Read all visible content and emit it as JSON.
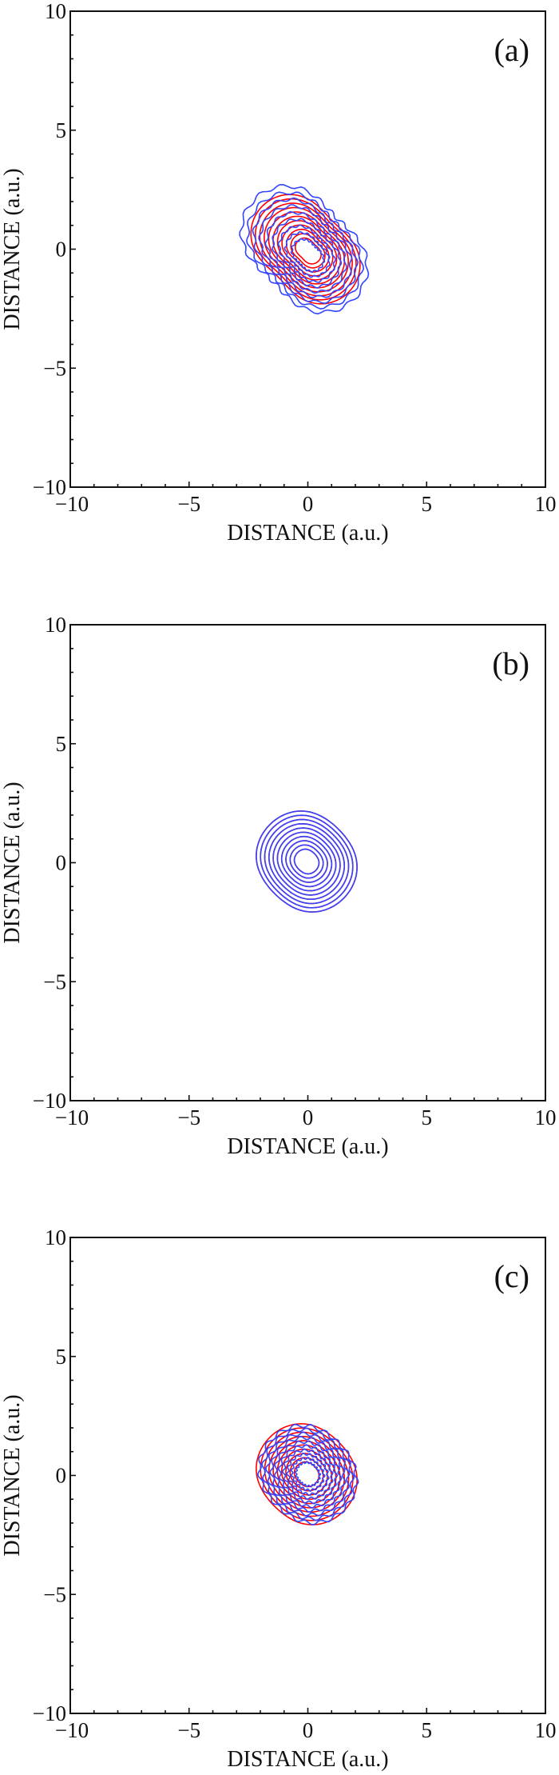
{
  "chart_data": [
    {
      "type": "contour",
      "panel_label": "(a)",
      "xlabel": "DISTANCE (a.u.)",
      "ylabel": "DISTANCE (a.u.)",
      "xlim": [
        -10,
        10
      ],
      "ylim": [
        -10,
        10
      ],
      "xticks": [
        -10,
        -5,
        0,
        5,
        10
      ],
      "yticks": [
        -10,
        -5,
        0,
        5,
        10
      ],
      "tick_labels": [
        "−10",
        "−5",
        "0",
        "5",
        "10"
      ],
      "grid": false,
      "series": [
        {
          "color": "#ff0000",
          "n_contours": 11,
          "outer_extent": {
            "x": [
              -2.2,
              2.0
            ],
            "y": [
              -2.1,
              2.1
            ]
          },
          "orientation_deg": 135,
          "wobbly": false
        },
        {
          "color": "#3344ff",
          "n_contours": 9,
          "outer_extent": {
            "x": [
              -2.6,
              2.3
            ],
            "y": [
              -2.4,
              2.4
            ]
          },
          "orientation_deg": 135,
          "wobbly": true
        }
      ]
    },
    {
      "type": "contour",
      "panel_label": "(b)",
      "xlabel": "DISTANCE (a.u.)",
      "ylabel": "DISTANCE (a.u.)",
      "xlim": [
        -10,
        10
      ],
      "ylim": [
        -10,
        10
      ],
      "xticks": [
        -10,
        -5,
        0,
        5,
        10
      ],
      "yticks": [
        -10,
        -5,
        0,
        5,
        10
      ],
      "tick_labels": [
        "−10",
        "−5",
        "0",
        "5",
        "10"
      ],
      "grid": false,
      "series": [
        {
          "color": "#ff0000",
          "n_contours": 10,
          "outer_extent": {
            "x": [
              -2.1,
              2.0
            ],
            "y": [
              -2.0,
              2.1
            ]
          },
          "orientation_deg": 135,
          "wobbly": false
        },
        {
          "color": "#3344ff",
          "n_contours": 10,
          "outer_extent": {
            "x": [
              -2.1,
              2.0
            ],
            "y": [
              -2.0,
              2.1
            ]
          },
          "orientation_deg": 135,
          "wobbly": false
        }
      ]
    },
    {
      "type": "contour",
      "panel_label": "(c)",
      "xlabel": "DISTANCE (a.u.)",
      "ylabel": "DISTANCE (a.u.)",
      "xlim": [
        -10,
        10
      ],
      "ylim": [
        -10,
        10
      ],
      "xticks": [
        -10,
        -5,
        0,
        5,
        10
      ],
      "yticks": [
        -10,
        -5,
        0,
        5,
        10
      ],
      "tick_labels": [
        "−10",
        "−5",
        "0",
        "5",
        "10"
      ],
      "grid": false,
      "series": [
        {
          "color": "#ff0000",
          "n_contours": 10,
          "outer_extent": {
            "x": [
              -2.1,
              2.0
            ],
            "y": [
              -2.0,
              2.1
            ]
          },
          "orientation_deg": 135,
          "wobbly": false
        },
        {
          "color": "#3344ff",
          "n_contours": 10,
          "outer_extent": {
            "x": [
              -2.0,
              2.0
            ],
            "y": [
              -1.9,
              2.0
            ]
          },
          "orientation_deg": 135,
          "wobbly": true
        }
      ]
    }
  ]
}
